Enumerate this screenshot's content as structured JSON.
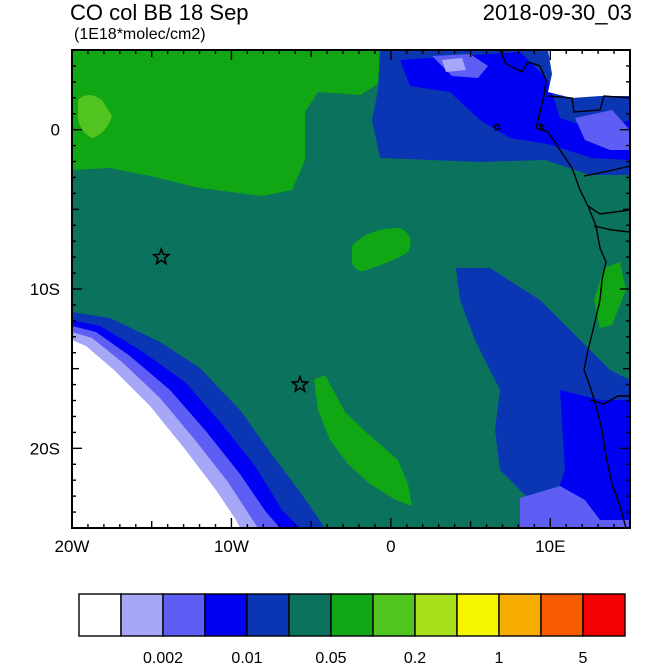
{
  "title": "CO col BB 18 Sep",
  "subtitle": "(1E18*molec/cm2)",
  "datetime": "2018-09-30_03",
  "axes": {
    "x_ticks": [
      {
        "value": -20,
        "label": "20W"
      },
      {
        "value": -10,
        "label": "10W"
      },
      {
        "value": 0,
        "label": "0"
      },
      {
        "value": 10,
        "label": "10E"
      }
    ],
    "y_ticks": [
      {
        "value": 0,
        "label": "0"
      },
      {
        "value": -10,
        "label": "10S"
      },
      {
        "value": -20,
        "label": "20S"
      }
    ],
    "lon_range": [
      -20,
      15
    ],
    "lat_range": [
      -25,
      5
    ]
  },
  "markers": [
    {
      "lon": -14.4,
      "lat": -8.0
    },
    {
      "lon": -5.7,
      "lat": -16.0
    }
  ],
  "colorbar": {
    "colors": [
      "#ffffff",
      "#a7a7f7",
      "#5e5ef4",
      "#0000f2",
      "#0a36b4",
      "#0b735d",
      "#10a614",
      "#52c41f",
      "#a8e01a",
      "#f6f600",
      "#f7ad00",
      "#f75d00",
      "#f50000"
    ],
    "labels": [
      {
        "index": 2,
        "text": "0.002"
      },
      {
        "index": 4,
        "text": "0.01"
      },
      {
        "index": 6,
        "text": "0.05"
      },
      {
        "index": 8,
        "text": "0.2"
      },
      {
        "index": 10,
        "text": "1"
      },
      {
        "index": 12,
        "text": "5"
      }
    ]
  }
}
